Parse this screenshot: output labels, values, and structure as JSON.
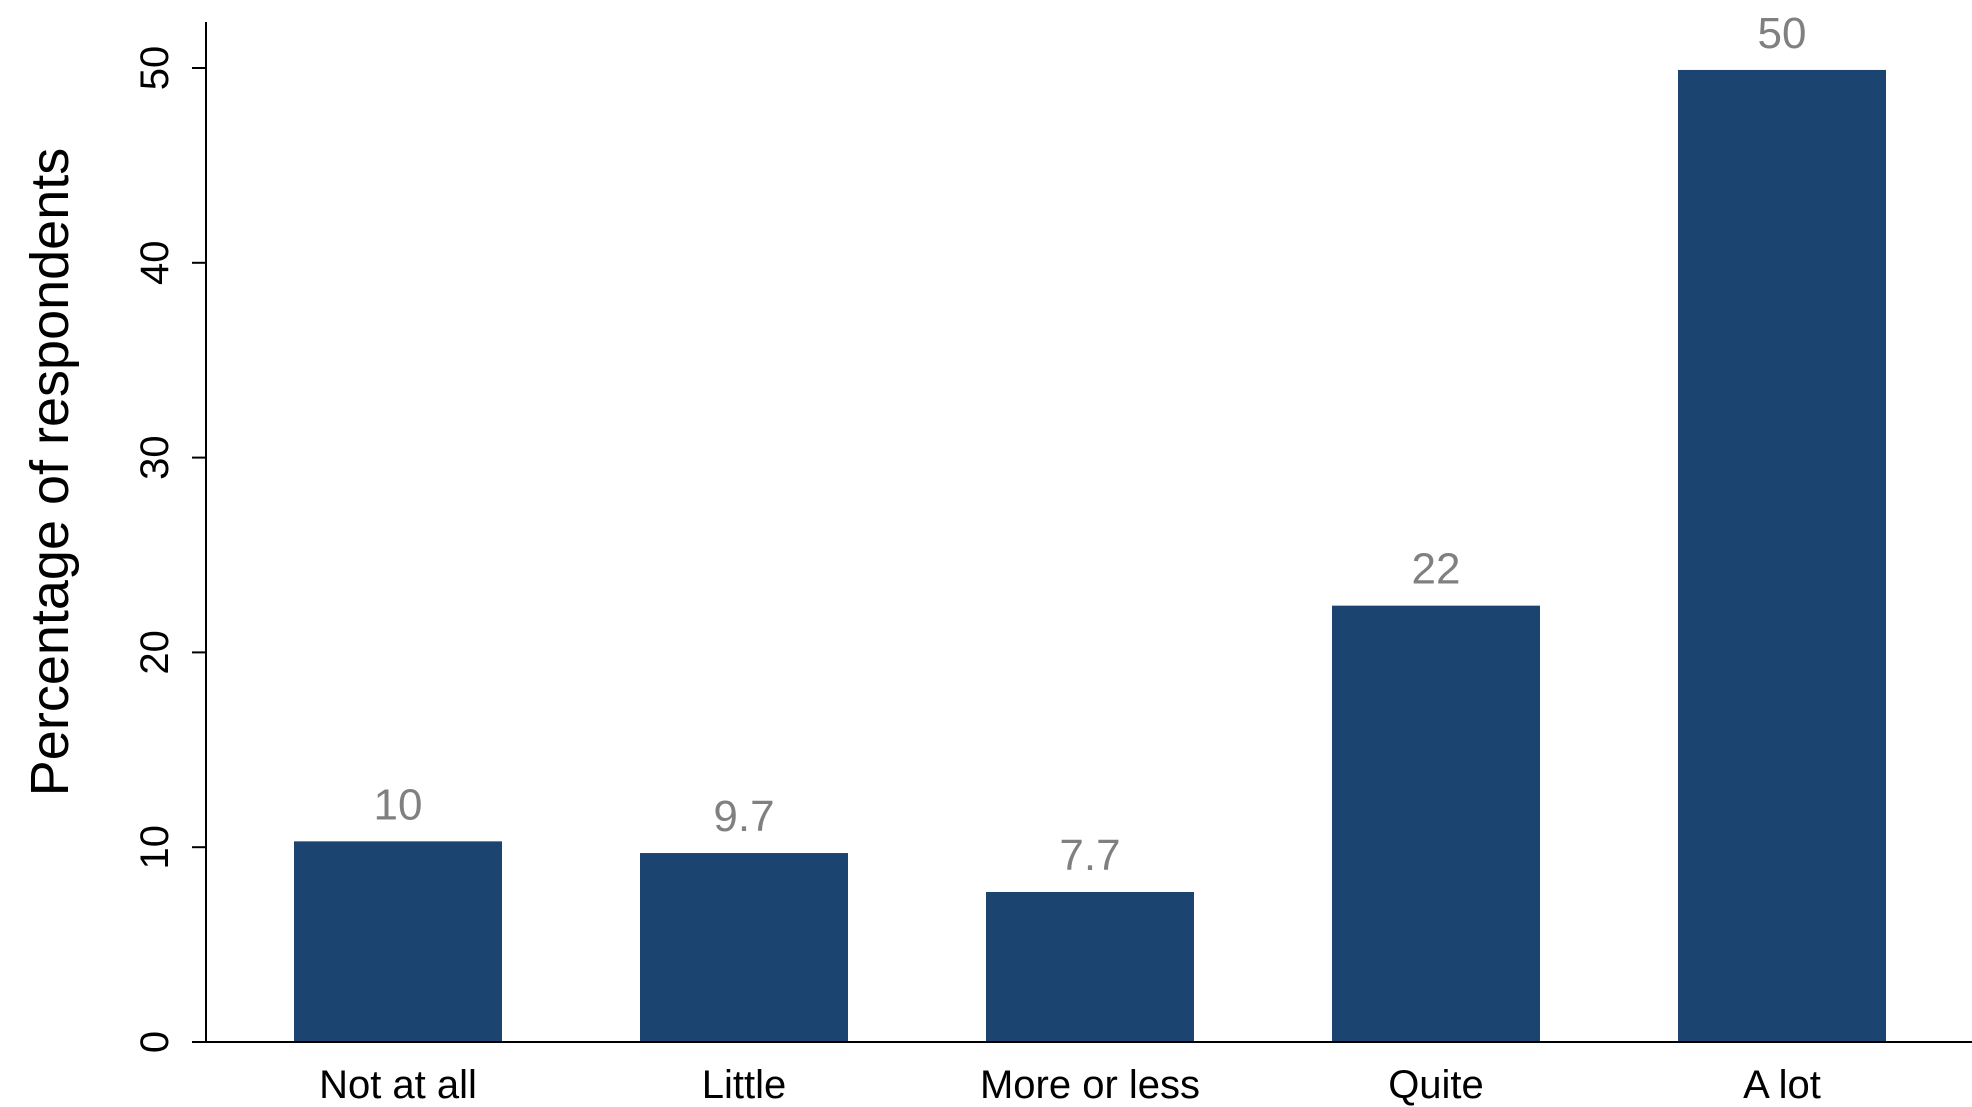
{
  "chart_data": {
    "type": "bar",
    "categories": [
      "Not at all",
      "Little",
      "More or less",
      "Quite",
      "A lot"
    ],
    "values": [
      10.3,
      9.7,
      7.7,
      22.4,
      49.9
    ],
    "data_labels": [
      "10",
      "9.7",
      "7.7",
      "22",
      "50"
    ],
    "title": "",
    "xlabel": "",
    "ylabel": "Percentage of respondents",
    "ylim": [
      0,
      50
    ],
    "yticks": [
      0,
      10,
      20,
      30,
      40,
      50
    ],
    "ytick_labels": [
      "0",
      "10",
      "20",
      "30",
      "40",
      "50"
    ],
    "grid": false,
    "legend": "none",
    "bar_color": "#1b4570",
    "data_label_color": "#808080"
  }
}
